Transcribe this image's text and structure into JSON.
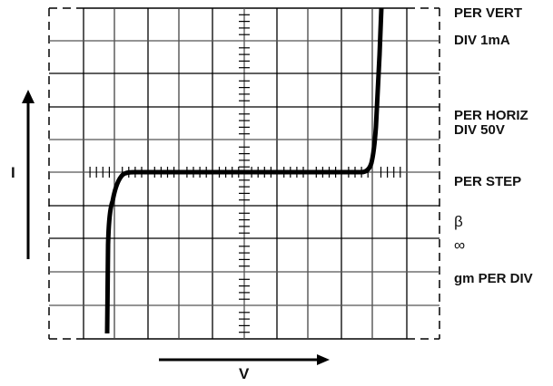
{
  "settings": {
    "per_vert_line1": "PER VERT",
    "per_vert_line2": "DIV 1mA",
    "per_horiz_line1": "PER HORIZ",
    "per_horiz_line2": "DIV 50V",
    "per_step": "PER STEP",
    "beta_symbol": "β",
    "infinity_symbol": "∞",
    "gm_per_div": "gm PER DIV"
  },
  "axes": {
    "y_label": "I",
    "x_label": "V"
  },
  "graticule": {
    "columns": 12,
    "rows": 10,
    "line_color": "#000000",
    "trace_color": "#000000"
  },
  "trace": {
    "description": "Zener diode I-V characteristic: flat at zero current, sharp forward conduction on right, reverse breakdown on left",
    "vertical_scale": "1mA/div",
    "horizontal_scale": "50V/div"
  }
}
